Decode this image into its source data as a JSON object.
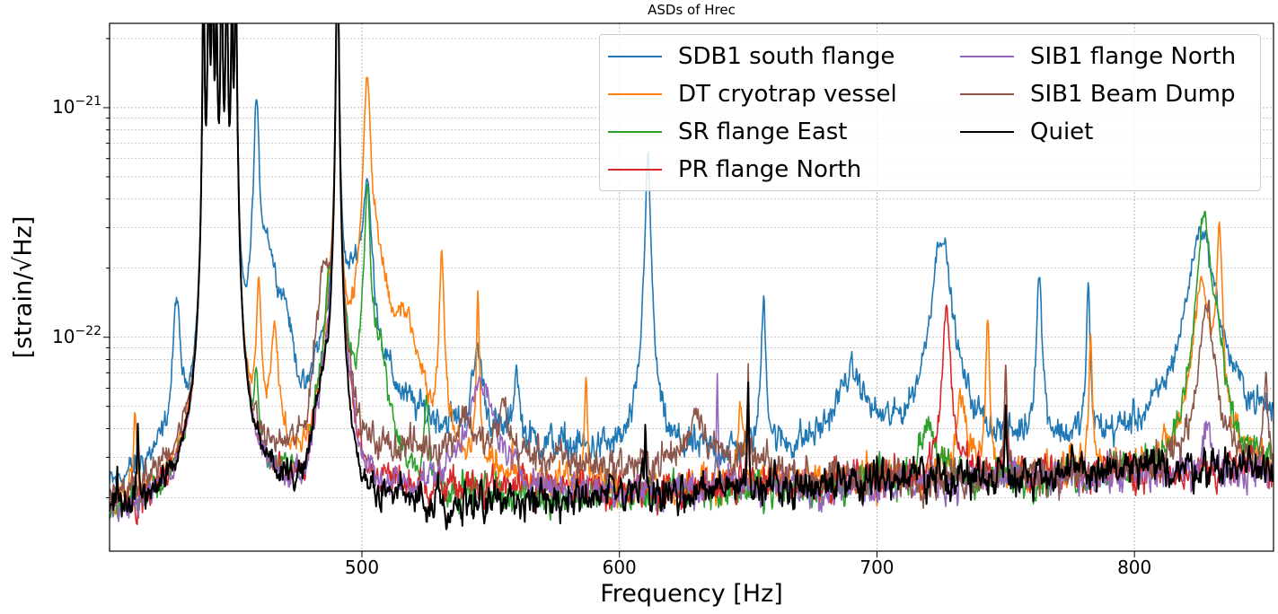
{
  "chart_data": {
    "type": "line",
    "title": "ASDs of Hrec",
    "xlabel": "Frequency [Hz]",
    "ylabel": "[strain/√Hz]",
    "xlim": [
      402,
      854
    ],
    "ylim": [
      1.17e-23,
      2.33e-21
    ],
    "yscale": "log",
    "grid": true,
    "legend_placement": "top-right",
    "xticks": [
      {
        "value": 500,
        "label": "500"
      },
      {
        "value": 600,
        "label": "600"
      },
      {
        "value": 700,
        "label": "700"
      },
      {
        "value": 800,
        "label": "800"
      }
    ],
    "yticks": [
      {
        "value": 1e-21,
        "base": "10",
        "exp": "−21"
      },
      {
        "value": 1e-22,
        "base": "10",
        "exp": "−22"
      }
    ],
    "common_lines": [
      {
        "f": 438.5,
        "value": 5e-21,
        "width": 0.25
      },
      {
        "f": 440.5,
        "value": 5e-21,
        "width": 0.3
      },
      {
        "f": 442,
        "value": 5e-21,
        "width": 0.3
      },
      {
        "f": 443.5,
        "value": 3e-21,
        "width": 0.3
      },
      {
        "f": 445.5,
        "value": 5e-21,
        "width": 0.3
      },
      {
        "f": 447.5,
        "value": 5e-21,
        "width": 0.3
      },
      {
        "f": 449.5,
        "value": 3e-21,
        "width": 0.3
      },
      {
        "f": 451,
        "value": 5e-21,
        "width": 0.3
      },
      {
        "f": 490.5,
        "value": 8e-21,
        "width": 0.3
      }
    ],
    "series": [
      {
        "name": "SDB1 south flange",
        "color": "#1f77b4",
        "baseline": [
          [
            402,
            1.9e-23
          ],
          [
            415,
            2.2e-23
          ],
          [
            430,
            2.4e-23
          ],
          [
            437,
            2.1e-23
          ],
          [
            452,
            2e-23
          ],
          [
            470,
            2.5e-23
          ],
          [
            478,
            2e-23
          ],
          [
            482,
            5e-23
          ],
          [
            492,
            6e-23
          ],
          [
            500,
            5e-23
          ],
          [
            515,
            4e-23
          ],
          [
            560,
            3.3e-23
          ],
          [
            600,
            3e-23
          ],
          [
            650,
            3e-23
          ],
          [
            700,
            3.2e-23
          ],
          [
            760,
            3.2e-23
          ],
          [
            800,
            3.4e-23
          ],
          [
            854,
            4e-23
          ]
        ],
        "peaks": [
          [
            428,
            1.1e-22,
            1.2
          ],
          [
            459,
            9.5e-22,
            0.9
          ],
          [
            463,
            2e-22,
            4
          ],
          [
            470,
            6e-23,
            3
          ],
          [
            498,
            1.3e-22,
            5
          ],
          [
            502,
            3.5e-22,
            1.5
          ],
          [
            545,
            5e-23,
            2
          ],
          [
            560,
            4e-23,
            1
          ],
          [
            611,
            5.8e-22,
            1
          ],
          [
            656,
            1.2e-22,
            0.8
          ],
          [
            690,
            3.5e-23,
            6
          ],
          [
            725,
            2.5e-22,
            3.5
          ],
          [
            763,
            1.5e-22,
            1
          ],
          [
            782,
            1.3e-22,
            0.6
          ],
          [
            826,
            2.6e-22,
            5
          ]
        ]
      },
      {
        "name": "DT cryotrap vessel",
        "color": "#ff7f0e",
        "baseline": [
          [
            402,
            1.7e-23
          ],
          [
            430,
            1.8e-23
          ],
          [
            452,
            1.8e-23
          ],
          [
            478,
            2e-23
          ],
          [
            495,
            5e-23
          ],
          [
            510,
            4e-23
          ],
          [
            530,
            2.4e-23
          ],
          [
            600,
            2.1e-23
          ],
          [
            700,
            2.4e-23
          ],
          [
            854,
            2.7e-23
          ]
        ],
        "peaks": [
          [
            412,
            2.8e-23,
            0.6
          ],
          [
            460,
            1.5e-22,
            0.8
          ],
          [
            466,
            8e-23,
            1.5
          ],
          [
            488,
            8e-23,
            2
          ],
          [
            502,
            1.3e-21,
            1.2
          ],
          [
            506,
            1.5e-22,
            3
          ],
          [
            517,
            8e-23,
            5
          ],
          [
            531,
            2.2e-22,
            0.8
          ],
          [
            545,
            1.3e-22,
            0.5
          ],
          [
            587,
            5e-23,
            0.5
          ],
          [
            647,
            3e-23,
            1
          ],
          [
            733,
            3e-23,
            2
          ],
          [
            743,
            1e-22,
            0.6
          ],
          [
            783,
            7e-23,
            0.6
          ],
          [
            826,
            1.5e-22,
            3
          ],
          [
            833,
            2.6e-22,
            1
          ]
        ]
      },
      {
        "name": "SR flange East",
        "color": "#2ca02c",
        "baseline": [
          [
            402,
            1.6e-23
          ],
          [
            452,
            1.8e-23
          ],
          [
            478,
            1.9e-23
          ],
          [
            485,
            6e-23
          ],
          [
            492,
            6e-23
          ],
          [
            500,
            3e-23
          ],
          [
            520,
            2e-23
          ],
          [
            600,
            2e-23
          ],
          [
            700,
            2.3e-23
          ],
          [
            854,
            2.6e-23
          ]
        ],
        "peaks": [
          [
            459,
            4e-23,
            0.6
          ],
          [
            487,
            6e-23,
            1
          ],
          [
            502,
            3.8e-22,
            1.2
          ],
          [
            507,
            5e-23,
            3
          ],
          [
            525,
            3e-23,
            1
          ],
          [
            720,
            2e-23,
            3
          ],
          [
            827,
            3.1e-22,
            2.5
          ],
          [
            832,
            5e-23,
            2
          ]
        ]
      },
      {
        "name": "PR flange North",
        "color": "#d62728",
        "baseline": [
          [
            402,
            1.7e-23
          ],
          [
            452,
            1.8e-23
          ],
          [
            478,
            1.9e-23
          ],
          [
            485,
            6e-23
          ],
          [
            492,
            6e-23
          ],
          [
            500,
            2.2e-23
          ],
          [
            600,
            2.1e-23
          ],
          [
            700,
            2.4e-23
          ],
          [
            854,
            2.7e-23
          ]
        ],
        "peaks": [
          [
            727,
            1.1e-22,
            1.5
          ],
          [
            750,
            5.5e-23,
            0.4
          ],
          [
            650,
            3e-23,
            0.3
          ]
        ]
      },
      {
        "name": "SIB1 flange North",
        "color": "#9467bd",
        "baseline": [
          [
            402,
            1.6e-23
          ],
          [
            452,
            1.7e-23
          ],
          [
            478,
            1.9e-23
          ],
          [
            485,
            6e-23
          ],
          [
            492,
            6e-23
          ],
          [
            500,
            2e-23
          ],
          [
            600,
            2.1e-23
          ],
          [
            700,
            2.3e-23
          ],
          [
            854,
            2.6e-23
          ]
        ],
        "peaks": [
          [
            546,
            4e-23,
            6
          ],
          [
            638,
            5e-23,
            0.3
          ],
          [
            828,
            1.5e-23,
            2
          ]
        ]
      },
      {
        "name": "SIB1 Beam Dump",
        "color": "#8c564b",
        "baseline": [
          [
            402,
            1.9e-23
          ],
          [
            430,
            2.4e-23
          ],
          [
            438,
            2.2e-23
          ],
          [
            452,
            2.1e-23
          ],
          [
            470,
            2.7e-23
          ],
          [
            478,
            3e-23
          ],
          [
            485,
            1.4e-22
          ],
          [
            492,
            6e-23
          ],
          [
            500,
            3e-23
          ],
          [
            520,
            3.2e-23
          ],
          [
            560,
            3e-23
          ],
          [
            600,
            2.7e-23
          ],
          [
            640,
            3e-23
          ],
          [
            680,
            2.4e-23
          ],
          [
            854,
            2.6e-23
          ]
        ],
        "peaks": [
          [
            485,
            6e-23,
            2
          ],
          [
            540,
            1.5e-23,
            3
          ],
          [
            555,
            2e-23,
            2
          ],
          [
            630,
            2e-23,
            3
          ],
          [
            650,
            4e-23,
            0.3
          ],
          [
            750,
            5e-23,
            0.4
          ],
          [
            828,
            1.1e-22,
            3
          ],
          [
            851,
            4e-23,
            0.8
          ]
        ]
      },
      {
        "name": "Quiet",
        "color": "#000000",
        "baseline": [
          [
            402,
            1.6e-23
          ],
          [
            437,
            1.7e-23
          ],
          [
            452,
            1.8e-23
          ],
          [
            478,
            1.9e-23
          ],
          [
            484,
            5e-23
          ],
          [
            489,
            4.5e-23
          ],
          [
            494,
            2e-23
          ],
          [
            500,
            1.8e-23
          ],
          [
            560,
            1.9e-23
          ],
          [
            600,
            2e-23
          ],
          [
            650,
            2.2e-23
          ],
          [
            700,
            2.4e-23
          ],
          [
            750,
            2.5e-23
          ],
          [
            854,
            2.8e-23
          ]
        ],
        "peaks": [
          [
            405,
            1e-23,
            0.3
          ],
          [
            413,
            2.5e-23,
            0.3
          ],
          [
            610,
            2e-23,
            0.3
          ],
          [
            650,
            3.5e-23,
            0.3
          ],
          [
            700,
            1e-23,
            0.3
          ],
          [
            750,
            3e-23,
            0.3
          ]
        ]
      }
    ]
  }
}
